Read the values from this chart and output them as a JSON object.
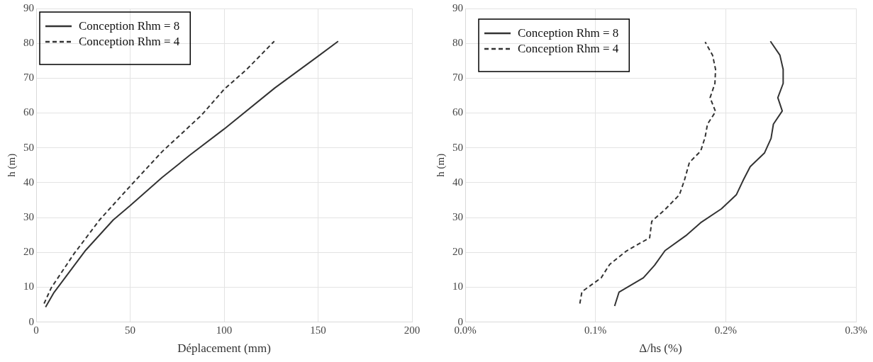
{
  "chart_data": [
    {
      "type": "line",
      "xlabel": "Déplacement (mm)",
      "ylabel": "h (m)",
      "xlim": [
        0,
        200
      ],
      "xticks": [
        0,
        50,
        100,
        150,
        200
      ],
      "ylim": [
        0,
        90
      ],
      "yticks": [
        0,
        10,
        20,
        30,
        40,
        50,
        60,
        70,
        80,
        90
      ],
      "grid": true,
      "legend": "top left",
      "marker": "none",
      "series": [
        {
          "name": "Conception Rhm = 8",
          "color": "#333333",
          "line_style": "solid",
          "x": [
            5,
            9.5,
            26,
            41,
            50,
            67,
            82,
            100,
            127,
            150,
            160.7
          ],
          "values": [
            4.3,
            8.5,
            20.4,
            29.3,
            33.4,
            41.5,
            48,
            55.4,
            67.2,
            76.3,
            80.6
          ]
        },
        {
          "name": "Conception Rhm = 4",
          "color": "#333333",
          "line_style": "dashed",
          "x": [
            4.2,
            8,
            20,
            33.7,
            50,
            67,
            88,
            100,
            112,
            126.7
          ],
          "values": [
            5.3,
            9.8,
            19.5,
            29.3,
            39,
            48.9,
            59.4,
            66.8,
            72.5,
            80.6
          ]
        }
      ]
    },
    {
      "type": "line",
      "xlabel": "Δ/hs (%)",
      "ylabel": "h (m)",
      "xlim": [
        0,
        0.3
      ],
      "xticks": [
        {
          "value": 0,
          "label": "0.0%"
        },
        {
          "value": 0.1,
          "label": "0.1%"
        },
        {
          "value": 0.2,
          "label": "0.2%"
        },
        {
          "value": 0.3,
          "label": "0.3%"
        }
      ],
      "ylim": [
        0,
        90
      ],
      "yticks": [
        0,
        10,
        20,
        30,
        40,
        50,
        60,
        70,
        80,
        90
      ],
      "grid": true,
      "legend": "top left",
      "marker": "none",
      "series": [
        {
          "name": "Conception Rhm = 8",
          "color": "#333333",
          "line_style": "solid",
          "x": [
            0.1147,
            0.1181,
            0.1368,
            0.1454,
            0.1534,
            0.1694,
            0.1807,
            0.1967,
            0.2081,
            0.2138,
            0.2188,
            0.2297,
            0.2348,
            0.2366,
            0.2434,
            0.24,
            0.2441,
            0.2441,
            0.2416,
            0.2343
          ],
          "values": [
            4.6,
            8.6,
            12.7,
            16.3,
            20.5,
            24.8,
            28.5,
            32.5,
            36.5,
            41,
            44.6,
            48.5,
            52.7,
            56.8,
            60.6,
            64.4,
            68.5,
            72.5,
            76.6,
            80.6
          ]
        },
        {
          "name": "Conception Rhm = 4",
          "color": "#333333",
          "line_style": "dashed",
          "x": [
            0.088,
            0.0896,
            0.1044,
            0.1108,
            0.1238,
            0.1416,
            0.1432,
            0.1534,
            0.1644,
            0.1682,
            0.1721,
            0.1808,
            0.1842,
            0.186,
            0.1922,
            0.188,
            0.1917,
            0.1922,
            0.1899,
            0.1842
          ],
          "values": [
            5.3,
            8.7,
            12.7,
            16.5,
            20.4,
            24.2,
            28.9,
            32.3,
            36.5,
            40.6,
            45.8,
            49.1,
            53.1,
            56.8,
            60.4,
            64.4,
            68.5,
            72.5,
            76.6,
            80.4
          ]
        }
      ]
    }
  ]
}
